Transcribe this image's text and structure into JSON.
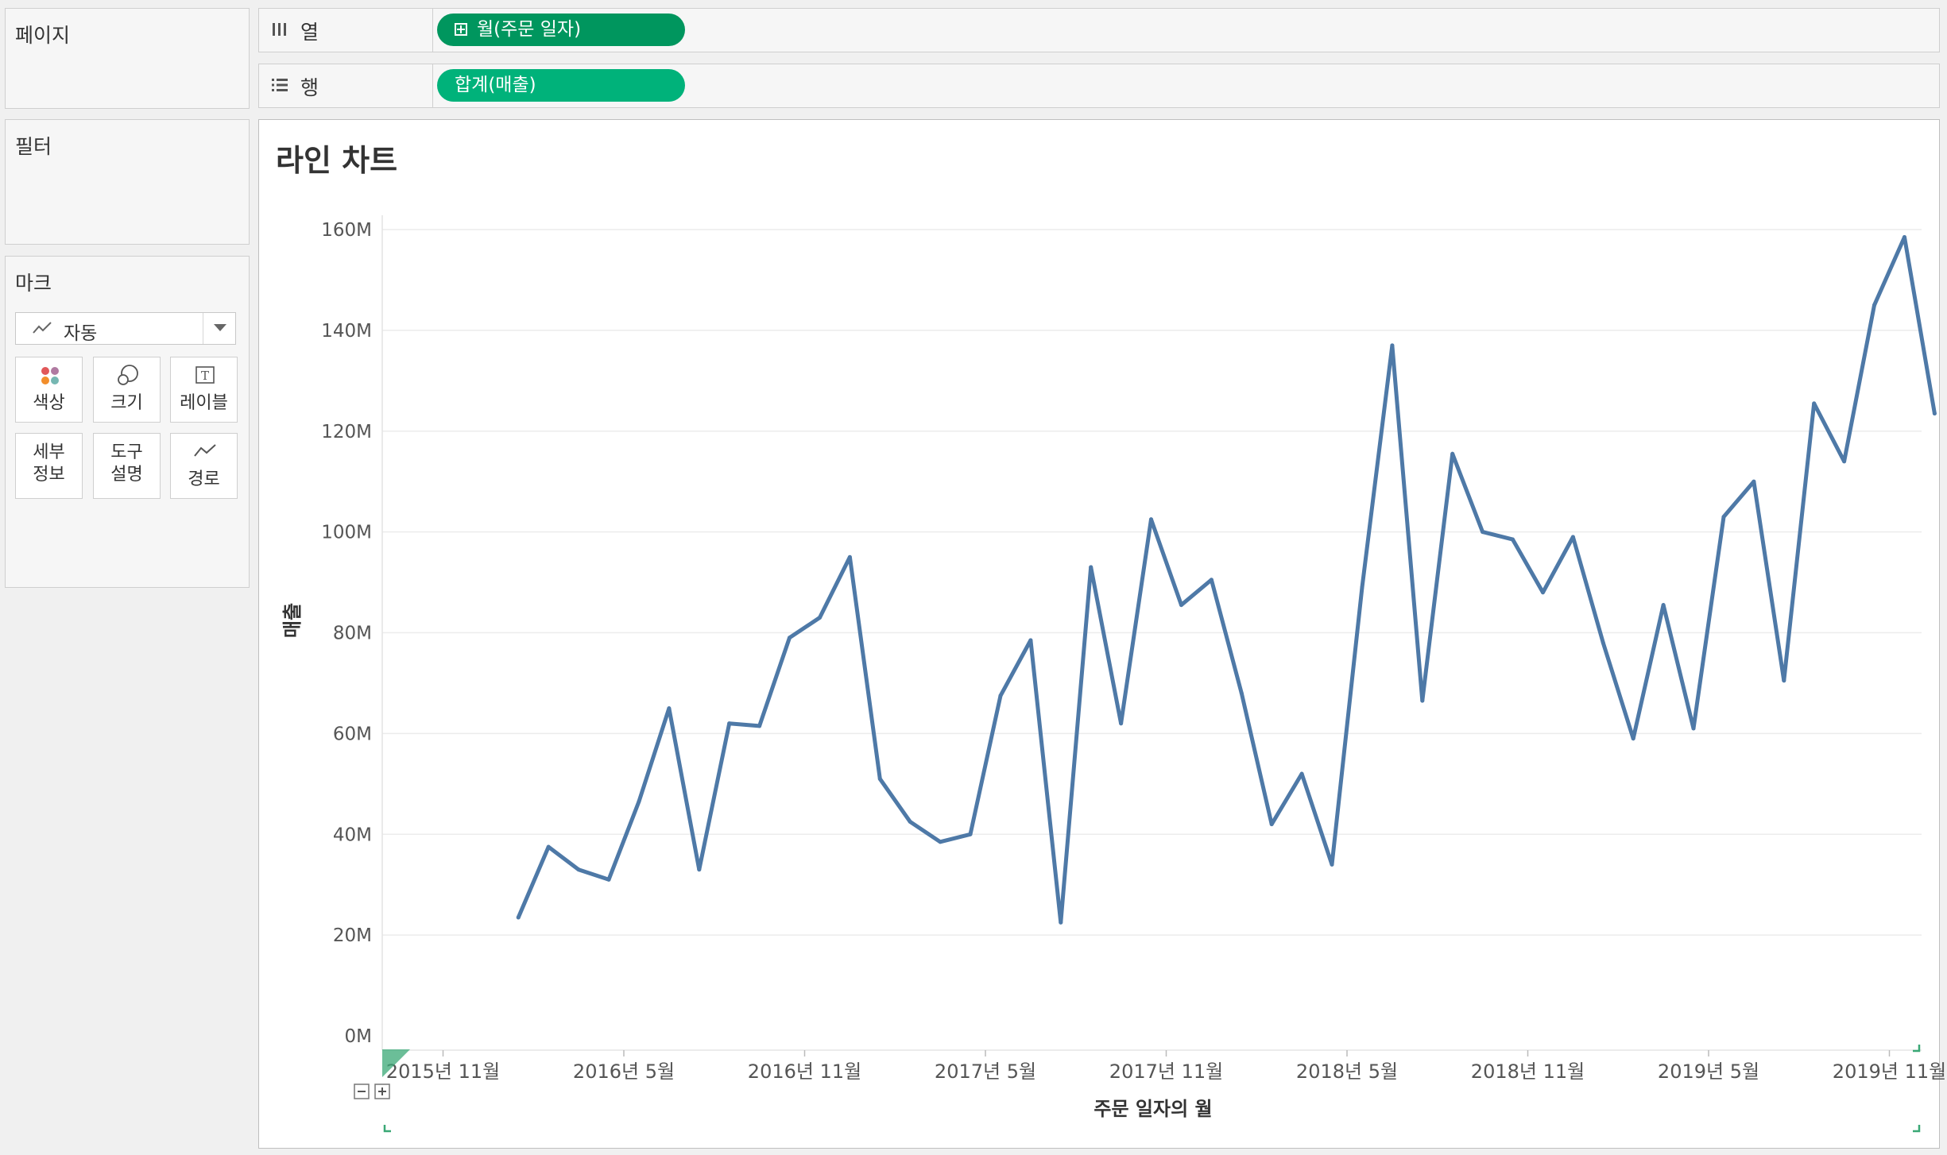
{
  "pages_panel": {
    "title": "페이지"
  },
  "filters_panel": {
    "title": "필터"
  },
  "marks_panel": {
    "title": "마크",
    "mark_type": "자동",
    "cards": [
      {
        "label": "색상",
        "icon": "color-dots-icon"
      },
      {
        "label": "크기",
        "icon": "size-circles-icon"
      },
      {
        "label": "레이블",
        "icon": "text-label-icon"
      },
      {
        "label_line1": "세부",
        "label_line2": "정보",
        "icon": "detail-icon"
      },
      {
        "label_line1": "도구",
        "label_line2": "설명",
        "icon": "tooltip-icon"
      },
      {
        "label": "경로",
        "icon": "path-line-icon"
      }
    ]
  },
  "columns_shelf": {
    "label": "열",
    "pill": "월(주문 일자)"
  },
  "rows_shelf": {
    "label": "행",
    "pill": "합계(매출)"
  },
  "colors": {
    "line": "#4e79a7",
    "pill_dark": "#00965e",
    "pill_light": "#00b27a",
    "grid": "#ececec"
  },
  "chart_data": {
    "type": "line",
    "title": "라인 차트",
    "xlabel": "주문 일자의 월",
    "ylabel": "매출",
    "ylim": [
      0,
      160
    ],
    "y_unit_suffix": "M",
    "yticks": [
      "0M",
      "20M",
      "40M",
      "60M",
      "80M",
      "100M",
      "120M",
      "140M",
      "160M"
    ],
    "xticks": [
      "2015년 11월",
      "2016년 5월",
      "2016년 11월",
      "2017년 5월",
      "2017년 11월",
      "2018년 5월",
      "2018년 11월",
      "2019년 5월",
      "2019년 11월"
    ],
    "xtick_month_index": [
      0,
      6,
      12,
      18,
      24,
      30,
      36,
      42,
      48
    ],
    "grid": true,
    "series": [
      {
        "x": [
          "2016-01",
          "2016-02",
          "2016-03",
          "2016-04",
          "2016-05",
          "2016-06",
          "2016-07",
          "2016-08",
          "2016-09",
          "2016-10",
          "2016-11",
          "2016-12",
          "2017-01",
          "2017-02",
          "2017-03",
          "2017-04",
          "2017-05",
          "2017-06",
          "2017-07",
          "2017-08",
          "2017-09",
          "2017-10",
          "2017-11",
          "2017-12",
          "2018-01",
          "2018-02",
          "2018-03",
          "2018-04",
          "2018-05",
          "2018-06",
          "2018-07",
          "2018-08",
          "2018-09",
          "2018-10",
          "2018-11",
          "2018-12",
          "2019-01",
          "2019-02",
          "2019-03",
          "2019-04",
          "2019-05",
          "2019-06",
          "2019-07",
          "2019-08",
          "2019-09",
          "2019-10",
          "2019-11",
          "2019-12",
          "2020-01",
          "2020-02"
        ],
        "x_month_index": [
          2.5,
          3.5,
          4.5,
          5.5,
          6.5,
          7.5,
          8.5,
          9.5,
          10.5,
          11.5,
          12.5,
          13.5,
          14.5,
          15.5,
          16.5,
          17.5,
          18.5,
          19.5,
          20.5,
          21.5,
          22.5,
          23.5,
          24.5,
          25.5,
          26.5,
          27.5,
          28.5,
          29.5,
          30.5,
          31.5,
          32.5,
          33.5,
          34.5,
          35.5,
          36.5,
          37.5,
          38.5,
          39.5,
          40.5,
          41.5,
          42.5,
          43.5,
          44.5,
          45.5,
          46.5,
          47.5,
          48.5,
          49.5,
          50.5,
          51.5
        ],
        "values": [
          23.5,
          37.5,
          33,
          31,
          46.5,
          65,
          33,
          62,
          61.5,
          79,
          83,
          95,
          51,
          42.5,
          38.5,
          40,
          67.5,
          78.5,
          22.5,
          93,
          62,
          102.5,
          85.5,
          90.5,
          68,
          42,
          52,
          34,
          89,
          137,
          66.5,
          115.5,
          100,
          98.5,
          88,
          99,
          78,
          59,
          85.5,
          61,
          103,
          110,
          70.5,
          125.5,
          114,
          145,
          158.5,
          123.5,
          null,
          null
        ]
      }
    ]
  }
}
